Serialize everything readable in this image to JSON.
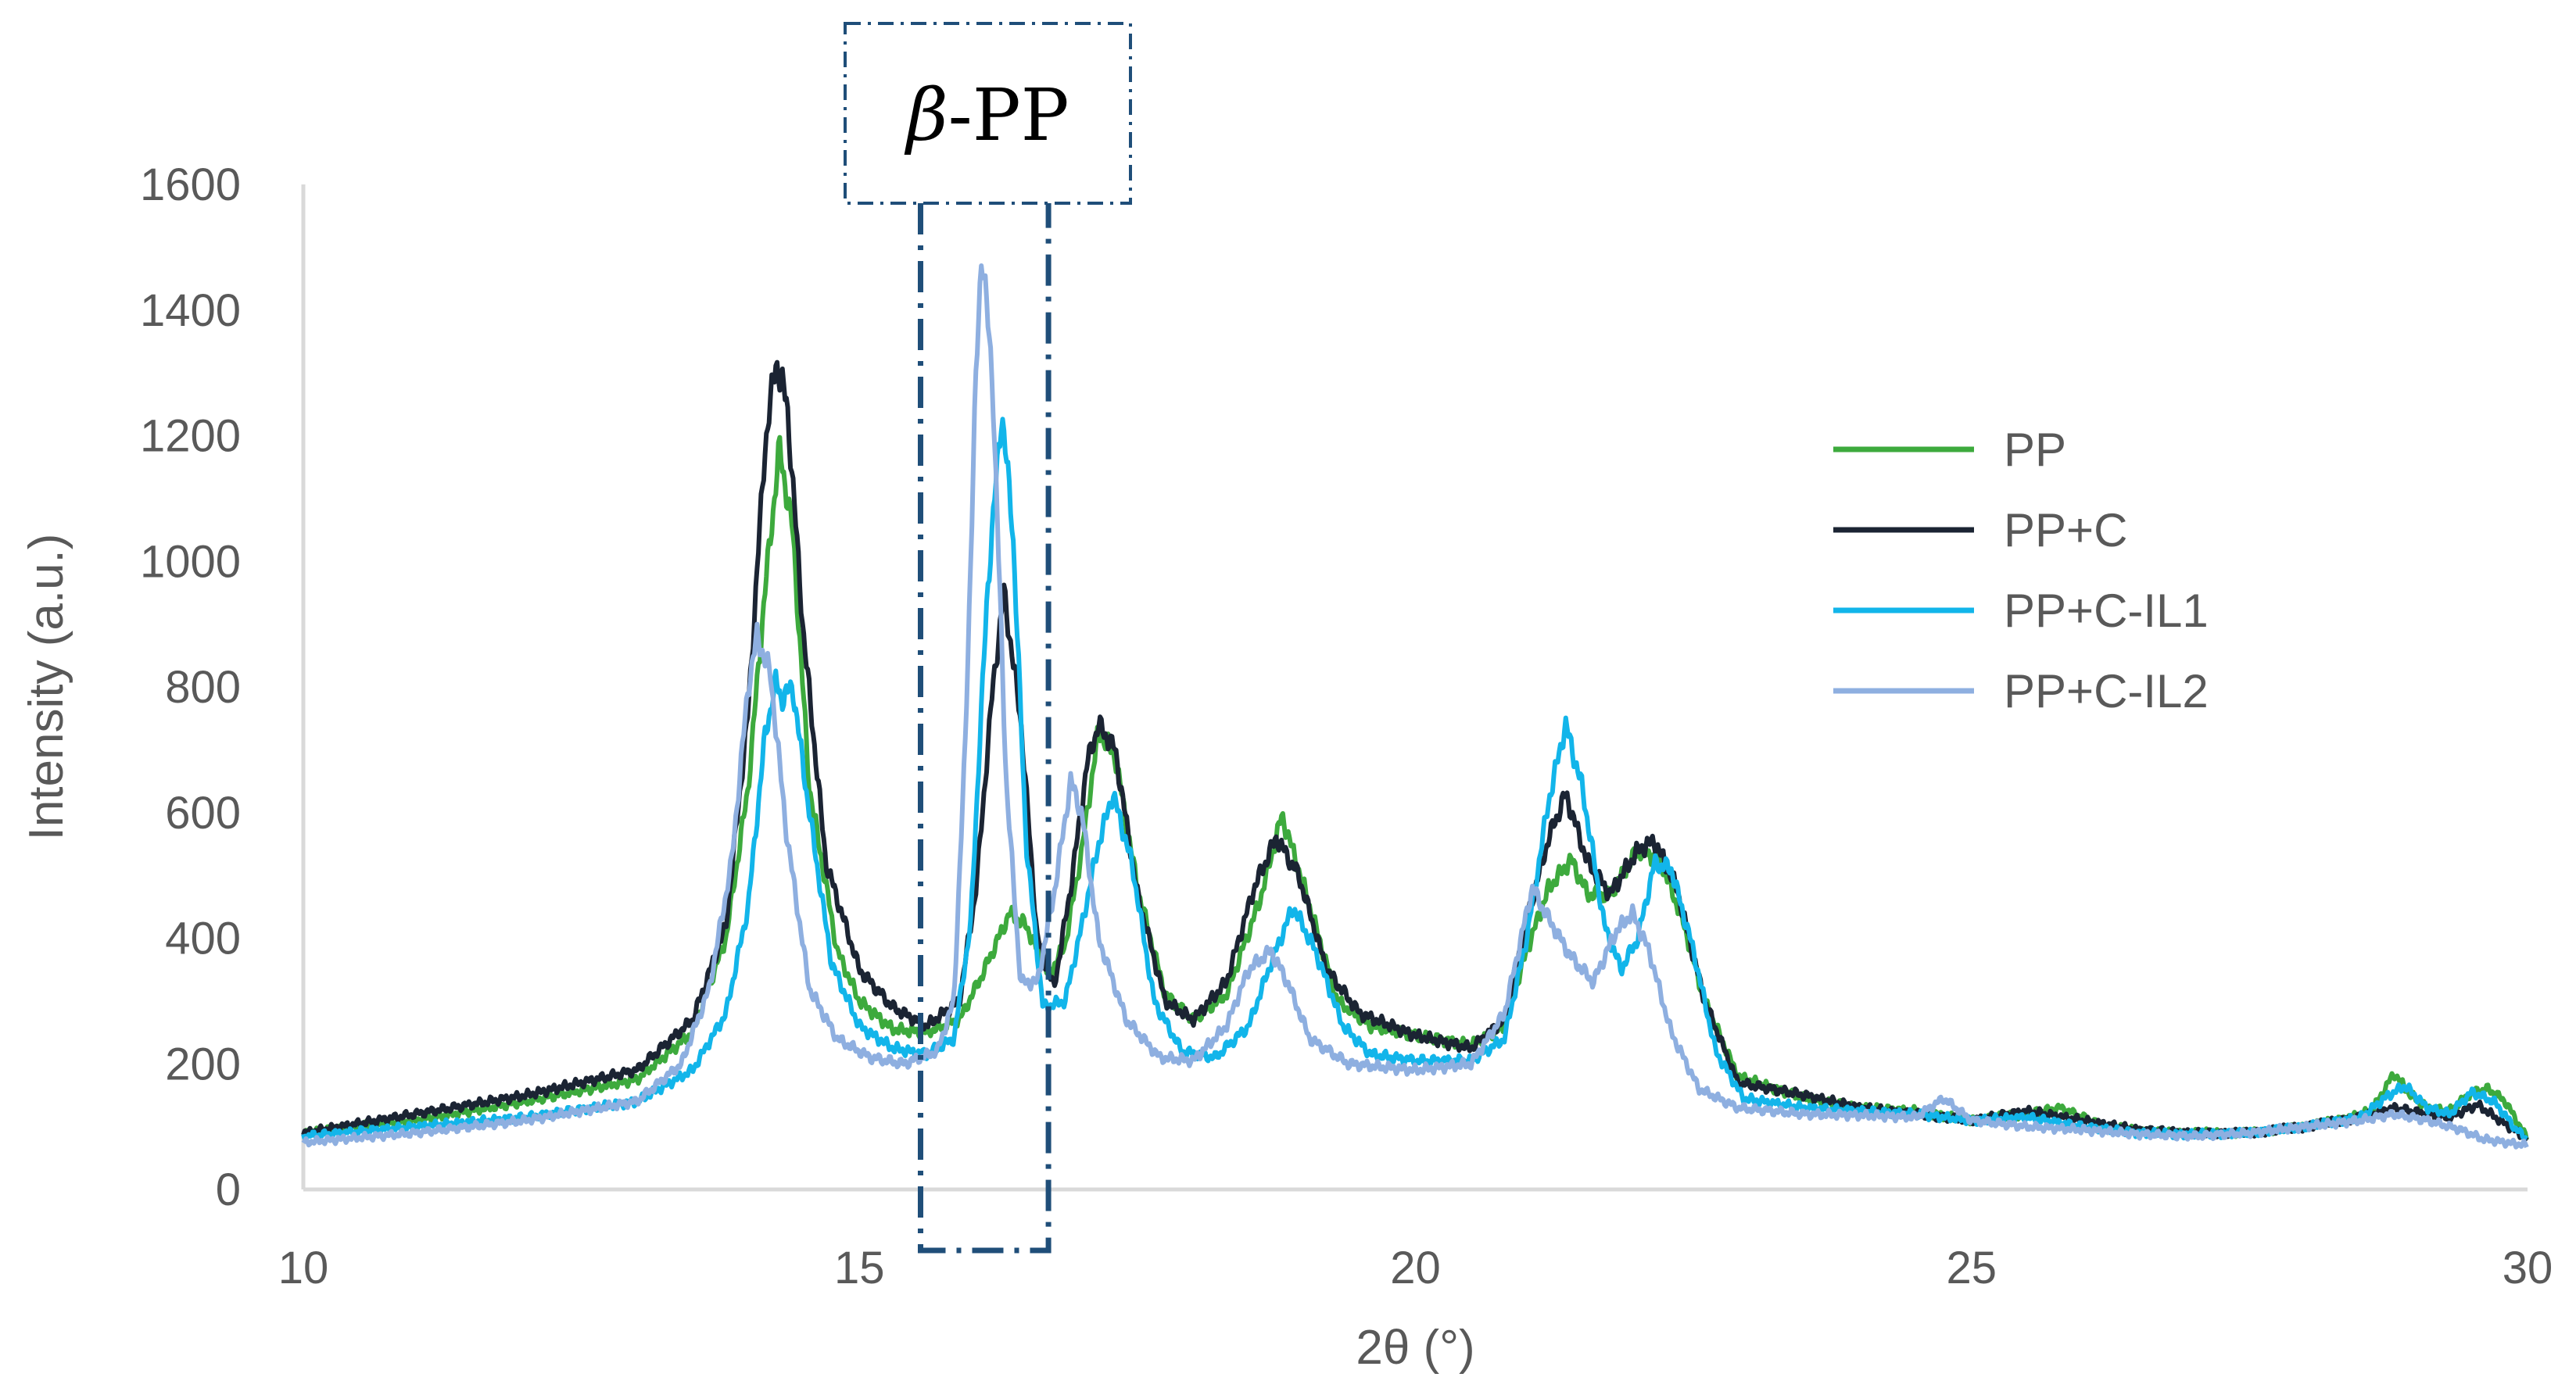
{
  "chart_data": {
    "type": "line",
    "title": "",
    "xlabel": "2θ (°)",
    "ylabel": "Intensity (a.u.)",
    "xlim": [
      10,
      30
    ],
    "ylim": [
      0,
      1600
    ],
    "xticks": [
      "10",
      "15",
      "20",
      "25",
      "30"
    ],
    "yticks": [
      "0",
      "200",
      "400",
      "600",
      "800",
      "1000",
      "1200",
      "1400",
      "1600"
    ],
    "grid": false,
    "legend_position": "right",
    "annotation": {
      "label_italic": "β",
      "label_rest": "-PP",
      "x_range": [
        15.55,
        16.7
      ],
      "box_color": "#1F4E79"
    },
    "series": [
      {
        "name": "PP",
        "color": "#3DAA3D",
        "points": [
          [
            10,
            90
          ],
          [
            11,
            110
          ],
          [
            12,
            140
          ],
          [
            13,
            175
          ],
          [
            13.5,
            250
          ],
          [
            13.8,
            400
          ],
          [
            14,
            640
          ],
          [
            14.15,
            950
          ],
          [
            14.28,
            1180
          ],
          [
            14.4,
            1050
          ],
          [
            14.55,
            640
          ],
          [
            14.8,
            380
          ],
          [
            15,
            300
          ],
          [
            15.3,
            255
          ],
          [
            15.6,
            250
          ],
          [
            15.9,
            270
          ],
          [
            16.1,
            340
          ],
          [
            16.35,
            440
          ],
          [
            16.5,
            420
          ],
          [
            16.7,
            340
          ],
          [
            16.85,
            390
          ],
          [
            17,
            540
          ],
          [
            17.15,
            730
          ],
          [
            17.3,
            690
          ],
          [
            17.5,
            480
          ],
          [
            17.75,
            310
          ],
          [
            18,
            270
          ],
          [
            18.3,
            310
          ],
          [
            18.6,
            460
          ],
          [
            18.8,
            595
          ],
          [
            19,
            480
          ],
          [
            19.3,
            300
          ],
          [
            19.6,
            260
          ],
          [
            20,
            245
          ],
          [
            20.5,
            230
          ],
          [
            20.8,
            260
          ],
          [
            21,
            380
          ],
          [
            21.2,
            480
          ],
          [
            21.4,
            525
          ],
          [
            21.55,
            470
          ],
          [
            21.75,
            470
          ],
          [
            22,
            540
          ],
          [
            22.2,
            525
          ],
          [
            22.4,
            430
          ],
          [
            22.6,
            300
          ],
          [
            22.9,
            180
          ],
          [
            23.5,
            145
          ],
          [
            24,
            130
          ],
          [
            24.5,
            125
          ],
          [
            25,
            110
          ],
          [
            25.5,
            120
          ],
          [
            25.8,
            130
          ],
          [
            26.2,
            100
          ],
          [
            26.7,
            90
          ],
          [
            27,
            90
          ],
          [
            27.5,
            90
          ],
          [
            28,
            100
          ],
          [
            28.3,
            110
          ],
          [
            28.6,
            125
          ],
          [
            28.8,
            185
          ],
          [
            28.95,
            150
          ],
          [
            29.1,
            130
          ],
          [
            29.3,
            125
          ],
          [
            29.5,
            155
          ],
          [
            29.65,
            160
          ],
          [
            29.8,
            140
          ],
          [
            30,
            80
          ]
        ]
      },
      {
        "name": "PP+C",
        "color": "#1B2433",
        "points": [
          [
            10,
            90
          ],
          [
            11,
            120
          ],
          [
            12,
            150
          ],
          [
            13,
            190
          ],
          [
            13.5,
            270
          ],
          [
            13.8,
            420
          ],
          [
            14,
            760
          ],
          [
            14.15,
            1180
          ],
          [
            14.25,
            1320
          ],
          [
            14.35,
            1250
          ],
          [
            14.5,
            880
          ],
          [
            14.7,
            520
          ],
          [
            15,
            350
          ],
          [
            15.3,
            290
          ],
          [
            15.6,
            260
          ],
          [
            15.9,
            300
          ],
          [
            16.05,
            480
          ],
          [
            16.2,
            800
          ],
          [
            16.3,
            950
          ],
          [
            16.45,
            750
          ],
          [
            16.6,
            400
          ],
          [
            16.75,
            320
          ],
          [
            16.9,
            480
          ],
          [
            17.05,
            680
          ],
          [
            17.15,
            740
          ],
          [
            17.3,
            700
          ],
          [
            17.5,
            470
          ],
          [
            17.75,
            300
          ],
          [
            18,
            270
          ],
          [
            18.3,
            330
          ],
          [
            18.55,
            480
          ],
          [
            18.75,
            560
          ],
          [
            18.95,
            500
          ],
          [
            19.2,
            350
          ],
          [
            19.5,
            280
          ],
          [
            20,
            245
          ],
          [
            20.5,
            225
          ],
          [
            20.8,
            270
          ],
          [
            21,
            430
          ],
          [
            21.2,
            560
          ],
          [
            21.35,
            630
          ],
          [
            21.55,
            520
          ],
          [
            21.75,
            470
          ],
          [
            22,
            540
          ],
          [
            22.15,
            555
          ],
          [
            22.35,
            480
          ],
          [
            22.6,
            300
          ],
          [
            22.9,
            170
          ],
          [
            23.5,
            150
          ],
          [
            24,
            130
          ],
          [
            24.5,
            120
          ],
          [
            25,
            110
          ],
          [
            25.5,
            125
          ],
          [
            26,
            110
          ],
          [
            26.5,
            95
          ],
          [
            27,
            90
          ],
          [
            27.5,
            90
          ],
          [
            28,
            100
          ],
          [
            28.5,
            115
          ],
          [
            28.8,
            130
          ],
          [
            29.1,
            120
          ],
          [
            29.3,
            115
          ],
          [
            29.55,
            135
          ],
          [
            29.75,
            110
          ],
          [
            30,
            80
          ]
        ]
      },
      {
        "name": "PP+C-IL1",
        "color": "#12B5EA",
        "points": [
          [
            10,
            85
          ],
          [
            11,
            100
          ],
          [
            12,
            115
          ],
          [
            13,
            140
          ],
          [
            13.5,
            190
          ],
          [
            13.8,
            280
          ],
          [
            14,
            450
          ],
          [
            14.15,
            720
          ],
          [
            14.25,
            810
          ],
          [
            14.3,
            780
          ],
          [
            14.4,
            800
          ],
          [
            14.55,
            600
          ],
          [
            14.75,
            360
          ],
          [
            15,
            260
          ],
          [
            15.3,
            225
          ],
          [
            15.6,
            215
          ],
          [
            15.85,
            240
          ],
          [
            16,
            420
          ],
          [
            16.15,
            950
          ],
          [
            16.28,
            1240
          ],
          [
            16.38,
            1050
          ],
          [
            16.5,
            550
          ],
          [
            16.65,
            290
          ],
          [
            16.85,
            300
          ],
          [
            17,
            420
          ],
          [
            17.15,
            550
          ],
          [
            17.28,
            630
          ],
          [
            17.45,
            520
          ],
          [
            17.65,
            300
          ],
          [
            17.9,
            220
          ],
          [
            18.2,
            210
          ],
          [
            18.5,
            260
          ],
          [
            18.7,
            360
          ],
          [
            18.9,
            450
          ],
          [
            19.1,
            380
          ],
          [
            19.35,
            260
          ],
          [
            19.6,
            215
          ],
          [
            20,
            205
          ],
          [
            20.5,
            205
          ],
          [
            20.8,
            240
          ],
          [
            21,
            400
          ],
          [
            21.2,
            620
          ],
          [
            21.35,
            740
          ],
          [
            21.5,
            640
          ],
          [
            21.7,
            420
          ],
          [
            21.85,
            350
          ],
          [
            22,
            400
          ],
          [
            22.15,
            520
          ],
          [
            22.3,
            510
          ],
          [
            22.5,
            380
          ],
          [
            22.7,
            220
          ],
          [
            22.95,
            145
          ],
          [
            23.5,
            130
          ],
          [
            24,
            125
          ],
          [
            24.5,
            120
          ],
          [
            25,
            110
          ],
          [
            25.5,
            115
          ],
          [
            26,
            100
          ],
          [
            26.5,
            90
          ],
          [
            27,
            88
          ],
          [
            27.5,
            90
          ],
          [
            28,
            100
          ],
          [
            28.5,
            115
          ],
          [
            28.75,
            150
          ],
          [
            28.9,
            165
          ],
          [
            29.1,
            130
          ],
          [
            29.3,
            120
          ],
          [
            29.5,
            155
          ],
          [
            29.7,
            140
          ],
          [
            29.9,
            95
          ],
          [
            30,
            80
          ]
        ]
      },
      {
        "name": "PP+C-IL2",
        "color": "#8EAFE0",
        "points": [
          [
            10,
            75
          ],
          [
            11,
            90
          ],
          [
            12,
            110
          ],
          [
            13,
            140
          ],
          [
            13.4,
            200
          ],
          [
            13.65,
            320
          ],
          [
            13.85,
            520
          ],
          [
            14,
            800
          ],
          [
            14.08,
            880
          ],
          [
            14.2,
            820
          ],
          [
            14.35,
            560
          ],
          [
            14.55,
            320
          ],
          [
            14.8,
            240
          ],
          [
            15.1,
            210
          ],
          [
            15.4,
            200
          ],
          [
            15.7,
            220
          ],
          [
            15.85,
            300
          ],
          [
            15.95,
            700
          ],
          [
            16.05,
            1300
          ],
          [
            16.1,
            1500
          ],
          [
            16.2,
            1280
          ],
          [
            16.32,
            650
          ],
          [
            16.45,
            330
          ],
          [
            16.6,
            330
          ],
          [
            16.75,
            470
          ],
          [
            16.9,
            650
          ],
          [
            17,
            600
          ],
          [
            17.15,
            400
          ],
          [
            17.4,
            270
          ],
          [
            17.7,
            210
          ],
          [
            18,
            205
          ],
          [
            18.3,
            260
          ],
          [
            18.5,
            350
          ],
          [
            18.7,
            380
          ],
          [
            18.85,
            330
          ],
          [
            19.05,
            240
          ],
          [
            19.4,
            200
          ],
          [
            20,
            190
          ],
          [
            20.5,
            200
          ],
          [
            20.8,
            280
          ],
          [
            20.95,
            400
          ],
          [
            21.05,
            480
          ],
          [
            21.2,
            430
          ],
          [
            21.4,
            370
          ],
          [
            21.6,
            330
          ],
          [
            21.8,
            410
          ],
          [
            21.95,
            440
          ],
          [
            22.1,
            380
          ],
          [
            22.3,
            250
          ],
          [
            22.55,
            160
          ],
          [
            22.9,
            130
          ],
          [
            23.5,
            120
          ],
          [
            24,
            118
          ],
          [
            24.5,
            115
          ],
          [
            24.75,
            145
          ],
          [
            25,
            110
          ],
          [
            25.5,
            100
          ],
          [
            26,
            95
          ],
          [
            26.5,
            88
          ],
          [
            27,
            85
          ],
          [
            27.5,
            90
          ],
          [
            28,
            100
          ],
          [
            28.5,
            110
          ],
          [
            28.8,
            120
          ],
          [
            29.1,
            110
          ],
          [
            29.4,
            95
          ],
          [
            29.6,
            80
          ],
          [
            29.8,
            75
          ],
          [
            30,
            70
          ]
        ]
      }
    ]
  }
}
